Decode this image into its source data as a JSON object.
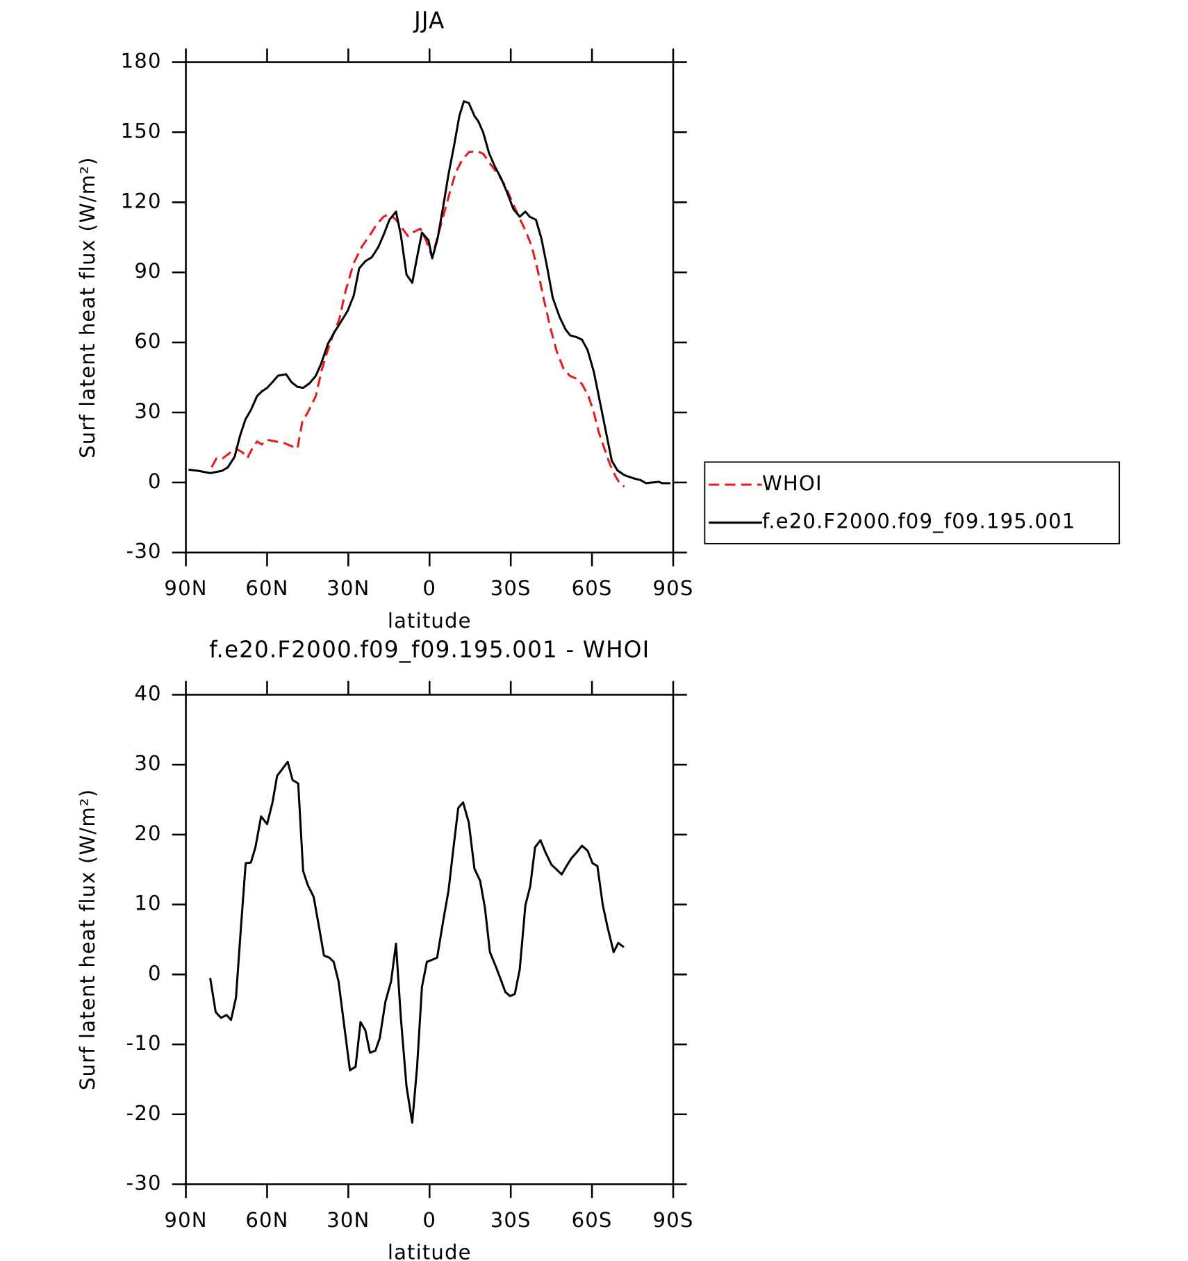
{
  "chart_data": [
    {
      "type": "line",
      "title": "JJA",
      "xlabel": "latitude",
      "ylabel": "Surf latent heat flux (W/m²)",
      "xlim": [
        90,
        -90
      ],
      "xticks": [
        {
          "value": 90,
          "label": "90N"
        },
        {
          "value": 60,
          "label": "60N"
        },
        {
          "value": 30,
          "label": "30N"
        },
        0,
        {
          "value": -30,
          "label": "30S"
        },
        {
          "value": -60,
          "label": "60S"
        },
        {
          "value": -90,
          "label": "90S"
        }
      ],
      "ylim": [
        -30,
        180
      ],
      "yticks": [
        -30,
        0,
        30,
        60,
        90,
        120,
        150,
        180
      ],
      "legend": "right",
      "series": [
        {
          "name": "WHOI",
          "color": "#e41a1c",
          "dash": true,
          "x": [
            80.5,
            78.7,
            76.3,
            73.6,
            71.5,
            69,
            67.3,
            65.5,
            63.7,
            62,
            60,
            57,
            54,
            51,
            48.8,
            47,
            45,
            42,
            40,
            37.8,
            35.7,
            33.3,
            31,
            28,
            25,
            22,
            19.6,
            17,
            14.8,
            12.4,
            10,
            7.9,
            5.8,
            3.4,
            1.3,
            -1,
            -2.8,
            -5,
            -7.3,
            -9.7,
            -12,
            -14.5,
            -17.5,
            -19.8,
            -22.5,
            -25.2,
            -28,
            -30.6,
            -33,
            -35.4,
            -37.8,
            -40,
            -42.2,
            -44.6,
            -47,
            -49.4,
            -51.8,
            -54,
            -56.3,
            -58.7,
            -60.7,
            -62.5,
            -64.6,
            -66.7,
            -68.8,
            -70.6,
            -72
          ],
          "values": [
            6.5,
            10.4,
            10.4,
            12.8,
            14.5,
            12.8,
            10.4,
            14.5,
            17.6,
            16.3,
            18.3,
            17.6,
            17,
            15.6,
            14.5,
            26,
            30,
            37,
            47.4,
            56,
            63,
            70,
            82,
            94,
            101,
            106,
            110.4,
            113.8,
            115,
            112.5,
            108.7,
            105.5,
            107.3,
            108.7,
            103.8,
            96.5,
            104.5,
            113.8,
            123.5,
            132.9,
            138,
            141.5,
            141.9,
            140.8,
            136.3,
            132.2,
            127,
            120,
            113.8,
            108,
            101,
            90.7,
            78.5,
            66.4,
            56,
            49,
            45.7,
            44.6,
            42.2,
            37,
            30,
            21.5,
            14.5,
            7.6,
            2.4,
            -1,
            -1.7
          ]
        },
        {
          "name": "f.e20.F2000.f09_f09.195.001",
          "color": "#000000",
          "dash": false,
          "x": [
            89,
            85.5,
            81,
            76.6,
            74.5,
            72,
            70,
            68,
            66,
            63.7,
            62,
            60,
            58,
            56,
            53,
            51,
            48.8,
            46.7,
            44.3,
            42,
            40,
            37.5,
            35,
            32.7,
            30.3,
            28,
            26,
            23.7,
            21.3,
            19,
            17,
            14.8,
            12.4,
            10.6,
            8.5,
            6.4,
            4.6,
            2.8,
            0.4,
            -1,
            -3,
            -5,
            -7,
            -9,
            -11,
            -12.7,
            -14.5,
            -16.6,
            -18,
            -19.8,
            -22,
            -24,
            -26.4,
            -28.5,
            -31,
            -33.3,
            -35.4,
            -37,
            -39.3,
            -41.3,
            -43.4,
            -45.5,
            -48,
            -50.3,
            -52,
            -54.2,
            -56.3,
            -58.4,
            -60.7,
            -62.8,
            -65.2,
            -67.3,
            -69.4,
            -72,
            -75.7,
            -78,
            -80,
            -84.6,
            -86,
            -89
          ],
          "values": [
            5.5,
            5,
            4,
            5,
            6.5,
            11,
            20,
            27,
            31,
            37,
            39,
            40.5,
            43,
            45.7,
            46.4,
            43,
            41,
            40.5,
            42.5,
            45.7,
            51,
            59.5,
            64.7,
            68.9,
            73.4,
            80,
            91.7,
            94.8,
            96.5,
            100.7,
            106,
            112.5,
            116,
            106,
            89,
            85.5,
            96.5,
            107,
            103.8,
            96,
            104.5,
            118,
            132,
            144,
            157,
            163.3,
            162.5,
            157,
            154.7,
            150,
            141,
            135.6,
            130.4,
            124.6,
            117,
            113.8,
            116,
            113.8,
            112.5,
            104.5,
            92.4,
            79.2,
            71,
            65.4,
            63,
            62.3,
            61.2,
            56.7,
            47.4,
            35.3,
            21.5,
            9.3,
            5.2,
            3.1,
            1.7,
            1,
            -0.3,
            0.3,
            -0.3,
            -0.3
          ]
        }
      ]
    },
    {
      "type": "line",
      "title": "f.e20.F2000.f09_f09.195.001 - WHOI",
      "xlabel": "latitude",
      "ylabel": "Surf latent heat flux (W/m²)",
      "xlim": [
        90,
        -90
      ],
      "xticks": [
        {
          "value": 90,
          "label": "90N"
        },
        {
          "value": 60,
          "label": "60N"
        },
        {
          "value": 30,
          "label": "30N"
        },
        0,
        {
          "value": -30,
          "label": "30S"
        },
        {
          "value": -60,
          "label": "60S"
        },
        {
          "value": -90,
          "label": "90S"
        }
      ],
      "ylim": [
        -30,
        40
      ],
      "yticks": [
        -30,
        -20,
        -10,
        0,
        10,
        20,
        30,
        40
      ],
      "series": [
        {
          "color": "#000000",
          "dash": false,
          "x": [
            81,
            79,
            77,
            75,
            73.3,
            71.5,
            69.7,
            67.9,
            66,
            64.3,
            62.2,
            60,
            58,
            56.3,
            54.5,
            52.4,
            50.6,
            48.5,
            46.7,
            45,
            42.8,
            40.7,
            39,
            37,
            35.4,
            33.6,
            31.5,
            29.4,
            27.3,
            25.5,
            23.7,
            22,
            20,
            18.4,
            16.3,
            14.2,
            12.4,
            10.6,
            8.5,
            6.4,
            4.6,
            2.8,
            1,
            -1,
            -2.8,
            -5,
            -7,
            -8.8,
            -10.6,
            -12.4,
            -14.5,
            -16.6,
            -18.7,
            -20.5,
            -22.3,
            -24.3,
            -26.1,
            -28,
            -29.7,
            -31.5,
            -33.3,
            -35.4,
            -37.2,
            -39,
            -41,
            -42.9,
            -45,
            -46.7,
            -48.8,
            -50.6,
            -52.4,
            -54.2,
            -56.3,
            -58.4,
            -60.2,
            -62,
            -64,
            -65.8,
            -68,
            -69.7,
            -71.8
          ],
          "values": [
            -0.5,
            -5.4,
            -6.2,
            -5.8,
            -6.5,
            -3.3,
            6.5,
            15.9,
            16,
            18.2,
            22.6,
            21.5,
            24.6,
            28.4,
            29.3,
            30.4,
            27.8,
            27.3,
            14.8,
            12.8,
            11.1,
            6.5,
            2.7,
            2.4,
            1.8,
            -1,
            -7.4,
            -13.7,
            -13.2,
            -6.8,
            -8,
            -11.2,
            -10.9,
            -9.1,
            -3.9,
            -1,
            4.4,
            -6.2,
            -16,
            -21.2,
            -13.2,
            -1.8,
            1.8,
            2.1,
            2.4,
            7.6,
            12,
            18,
            23.8,
            24.6,
            21.7,
            15.1,
            13.4,
            9.4,
            3.2,
            1.3,
            -0.5,
            -2.5,
            -3.1,
            -2.8,
            0.7,
            9.9,
            12.6,
            18.2,
            19.2,
            17.4,
            15.7,
            15.1,
            14.3,
            15.5,
            16.6,
            17.4,
            18.4,
            17.7,
            15.9,
            15.5,
            9.9,
            6.7,
            3.2,
            4.5,
            3.9
          ]
        }
      ]
    }
  ]
}
